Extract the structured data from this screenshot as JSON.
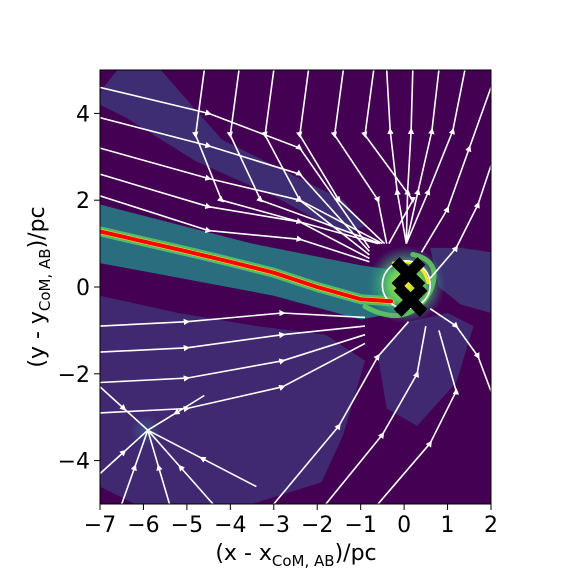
{
  "chart_data": {
    "type": "heatmap",
    "title": "",
    "xlabel": {
      "prefix": "(x - x",
      "sub": "CoM, AB",
      "suffix": ")/pc"
    },
    "ylabel": {
      "prefix": "(y - y",
      "sub": "CoM, AB",
      "suffix": ")/pc"
    },
    "xlim": [
      -7,
      2
    ],
    "ylim": [
      -5,
      5
    ],
    "x_ticks": [
      -7,
      -6,
      -5,
      -4,
      -3,
      -2,
      -1,
      0,
      1,
      2
    ],
    "x_tick_labels": [
      "−7",
      "−6",
      "−5",
      "−4",
      "−3",
      "−2",
      "−1",
      "0",
      "1",
      "2"
    ],
    "y_ticks": [
      -4,
      -2,
      0,
      2,
      4
    ],
    "y_tick_labels": [
      "−4",
      "−2",
      "0",
      "2",
      "4"
    ],
    "grid": false,
    "colormap": "viridis",
    "colors": {
      "background": "#440154",
      "low": "#3b528b",
      "mid": "#21918c",
      "high": "#5ec962",
      "peak": "#fde725",
      "streamlines": "#ffffff",
      "stream_trail": "#ff0000",
      "sink_marker": "#000000"
    },
    "overlays": [
      "density-map",
      "velocity-streamlines",
      "sink-particle-trail",
      "sink-markers"
    ],
    "red_trail": [
      [
        -7.0,
        1.28
      ],
      [
        -6.0,
        1.05
      ],
      [
        -5.0,
        0.82
      ],
      [
        -4.0,
        0.58
      ],
      [
        -3.0,
        0.33
      ],
      [
        -2.0,
        0.0
      ],
      [
        -1.0,
        -0.28
      ],
      [
        -0.3,
        -0.33
      ]
    ],
    "streamline_sources": [
      {
        "name": "converging-point",
        "x": -5.9,
        "y": -3.3
      },
      {
        "name": "binary-center",
        "x": 0.0,
        "y": 0.0
      }
    ]
  }
}
